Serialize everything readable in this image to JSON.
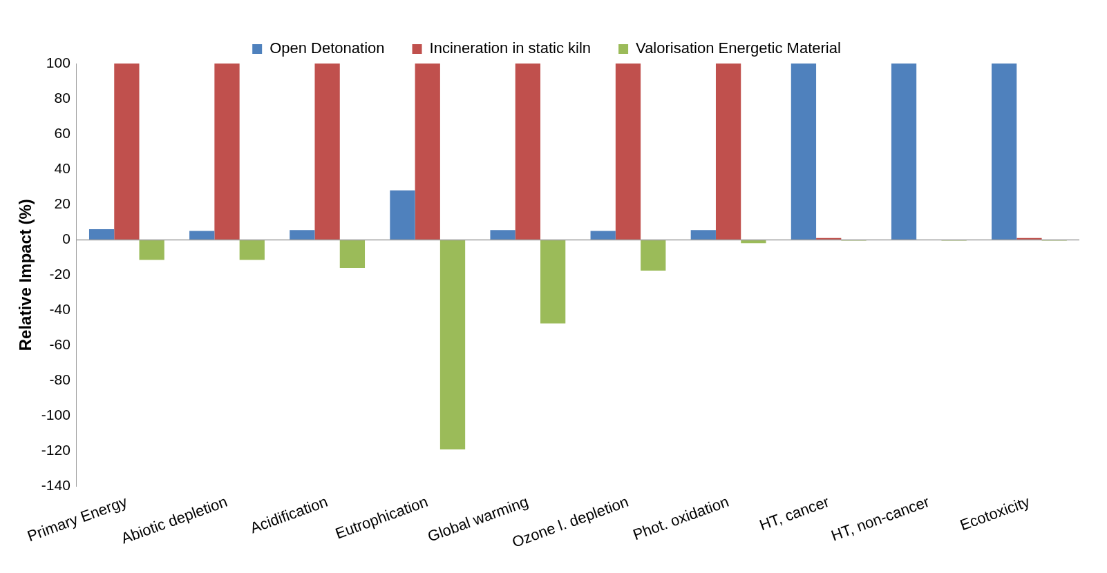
{
  "chart_data": {
    "type": "bar",
    "ylabel": "Relative Impact (%)",
    "categories": [
      "Primary Energy",
      "Abiotic depletion",
      "Acidification",
      "Eutrophication",
      "Global warming",
      "Ozone l. depletion",
      "Phot. oxidation",
      "HT, cancer",
      "HT, non-cancer",
      "Ecotoxicity"
    ],
    "series": [
      {
        "name": "Open Detonation",
        "color": "#4f81bd",
        "values": [
          6,
          5,
          5.5,
          28,
          5.5,
          5,
          5.5,
          100,
          100,
          100
        ]
      },
      {
        "name": "Incineration in static kiln",
        "color": "#c0504d",
        "values": [
          100,
          100,
          100,
          100,
          100,
          100,
          100,
          1,
          0,
          1
        ]
      },
      {
        "name": "Valorisation Energetic Material",
        "color": "#9bbb59",
        "values": [
          -11.5,
          -11.5,
          -16,
          -119,
          -47.5,
          -17.5,
          -2,
          -0.5,
          -0.5,
          -0.5
        ]
      }
    ],
    "ylim": [
      -140,
      100
    ],
    "yticks": [
      -140,
      -120,
      -100,
      -80,
      -60,
      -40,
      -20,
      0,
      20,
      40,
      60,
      80,
      100
    ],
    "ref_lines": [
      {
        "axis": "y",
        "value": 0,
        "color": "#a0a0a0"
      }
    ],
    "legend": "top",
    "grid": false
  }
}
